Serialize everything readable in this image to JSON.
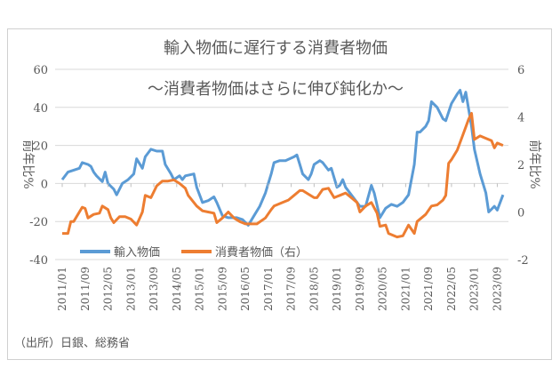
{
  "chart_data": {
    "type": "line",
    "title": "輸入物価に遅行する消費者物価",
    "subtitle": "～消費者物価はさらに伸び鈍化か～",
    "ylabel_left": "前年比%",
    "ylabel_right": "前年比%",
    "ylim_left": [
      -40,
      60
    ],
    "yticks_left": [
      60,
      40,
      20,
      0,
      -20,
      -40
    ],
    "ylim_right": [
      -2,
      6
    ],
    "yticks_right": [
      6,
      4,
      2,
      0,
      -2
    ],
    "grid": true,
    "legend_position": "bottom-left",
    "source": "（出所）日銀、総務省",
    "x_ticks": [
      "2011/01",
      "2011/09",
      "2012/05",
      "2013/01",
      "2013/09",
      "2014/05",
      "2015/01",
      "2015/09",
      "2016/05",
      "2017/01",
      "2017/09",
      "2018/05",
      "2019/01",
      "2019/09",
      "2020/05",
      "2021/01",
      "2021/09",
      "2022/05",
      "2023/01",
      "2023/09"
    ],
    "series": [
      {
        "name": "輸入物価",
        "axis": "left",
        "color": "#5B9BD5",
        "points": [
          [
            "2011/01",
            2
          ],
          [
            "2011/03",
            6
          ],
          [
            "2011/05",
            7
          ],
          [
            "2011/07",
            8
          ],
          [
            "2011/08",
            11
          ],
          [
            "2011/10",
            10
          ],
          [
            "2011/11",
            9
          ],
          [
            "2011/12",
            6
          ],
          [
            "2012/01",
            4
          ],
          [
            "2012/03",
            1
          ],
          [
            "2012/04",
            6
          ],
          [
            "2012/05",
            0
          ],
          [
            "2012/07",
            -3
          ],
          [
            "2012/08",
            -6
          ],
          [
            "2012/09",
            -3
          ],
          [
            "2012/10",
            0
          ],
          [
            "2012/12",
            2
          ],
          [
            "2013/02",
            5
          ],
          [
            "2013/03",
            13
          ],
          [
            "2013/05",
            8
          ],
          [
            "2013/06",
            14
          ],
          [
            "2013/08",
            18
          ],
          [
            "2013/10",
            17
          ],
          [
            "2013/12",
            17
          ],
          [
            "2014/01",
            10
          ],
          [
            "2014/03",
            5
          ],
          [
            "2014/04",
            2
          ],
          [
            "2014/06",
            4
          ],
          [
            "2014/07",
            2
          ],
          [
            "2014/08",
            4
          ],
          [
            "2014/11",
            5
          ],
          [
            "2014/12",
            -2
          ],
          [
            "2015/02",
            -10
          ],
          [
            "2015/04",
            -9
          ],
          [
            "2015/06",
            -7
          ],
          [
            "2015/07",
            -10
          ],
          [
            "2015/09",
            -17
          ],
          [
            "2015/11",
            -18
          ],
          [
            "2016/02",
            -18
          ],
          [
            "2016/04",
            -19
          ],
          [
            "2016/06",
            -22
          ],
          [
            "2016/08",
            -17
          ],
          [
            "2016/10",
            -12
          ],
          [
            "2016/12",
            -5
          ],
          [
            "2017/02",
            5
          ],
          [
            "2017/03",
            11
          ],
          [
            "2017/05",
            12
          ],
          [
            "2017/07",
            12
          ],
          [
            "2017/10",
            14
          ],
          [
            "2017/11",
            15
          ],
          [
            "2017/12",
            10
          ],
          [
            "2018/01",
            5
          ],
          [
            "2018/03",
            2
          ],
          [
            "2018/04",
            5
          ],
          [
            "2018/05",
            10
          ],
          [
            "2018/07",
            12
          ],
          [
            "2018/08",
            11
          ],
          [
            "2018/10",
            7
          ],
          [
            "2018/11",
            8
          ],
          [
            "2019/01",
            -2
          ],
          [
            "2019/02",
            -1
          ],
          [
            "2019/03",
            2
          ],
          [
            "2019/04",
            -2
          ],
          [
            "2019/06",
            -6
          ],
          [
            "2019/08",
            -10
          ],
          [
            "2019/09",
            -12
          ],
          [
            "2019/11",
            -12
          ],
          [
            "2020/01",
            -1
          ],
          [
            "2020/02",
            -5
          ],
          [
            "2020/04",
            -18
          ],
          [
            "2020/06",
            -13
          ],
          [
            "2020/08",
            -11
          ],
          [
            "2020/10",
            -12
          ],
          [
            "2020/12",
            -10
          ],
          [
            "2021/02",
            -6
          ],
          [
            "2021/04",
            10
          ],
          [
            "2021/05",
            27
          ],
          [
            "2021/06",
            27
          ],
          [
            "2021/08",
            30
          ],
          [
            "2021/09",
            33
          ],
          [
            "2021/10",
            43
          ],
          [
            "2021/12",
            40
          ],
          [
            "2022/02",
            34
          ],
          [
            "2022/03",
            33
          ],
          [
            "2022/05",
            42
          ],
          [
            "2022/07",
            47
          ],
          [
            "2022/08",
            49
          ],
          [
            "2022/09",
            43
          ],
          [
            "2022/10",
            48
          ],
          [
            "2022/12",
            30
          ],
          [
            "2023/01",
            18
          ],
          [
            "2023/03",
            5
          ],
          [
            "2023/05",
            -5
          ],
          [
            "2023/06",
            -15
          ],
          [
            "2023/08",
            -12
          ],
          [
            "2023/09",
            -14
          ],
          [
            "2023/11",
            -6
          ]
        ]
      },
      {
        "name": "消費者物価（右）",
        "axis": "right",
        "color": "#ED7D31",
        "points": [
          [
            "2011/01",
            -0.9
          ],
          [
            "2011/03",
            -0.9
          ],
          [
            "2011/04",
            -0.4
          ],
          [
            "2011/05",
            -0.4
          ],
          [
            "2011/07",
            0
          ],
          [
            "2011/08",
            0.2
          ],
          [
            "2011/09",
            0.15
          ],
          [
            "2011/10",
            -0.25
          ],
          [
            "2011/12",
            -0.1
          ],
          [
            "2012/02",
            -0.05
          ],
          [
            "2012/03",
            0.25
          ],
          [
            "2012/05",
            0.1
          ],
          [
            "2012/06",
            -0.25
          ],
          [
            "2012/07",
            -0.45
          ],
          [
            "2012/09",
            -0.2
          ],
          [
            "2012/11",
            -0.2
          ],
          [
            "2013/01",
            -0.3
          ],
          [
            "2013/03",
            -0.55
          ],
          [
            "2013/05",
            0
          ],
          [
            "2013/06",
            0.7
          ],
          [
            "2013/08",
            0.6
          ],
          [
            "2013/10",
            1.1
          ],
          [
            "2013/12",
            1.3
          ],
          [
            "2014/02",
            1.3
          ],
          [
            "2014/04",
            1.35
          ],
          [
            "2014/06",
            1.2
          ],
          [
            "2014/08",
            1.0
          ],
          [
            "2014/09",
            0.7
          ],
          [
            "2014/12",
            0.25
          ],
          [
            "2015/02",
            0.05
          ],
          [
            "2015/04",
            0
          ],
          [
            "2015/06",
            -0.05
          ],
          [
            "2015/07",
            -0.45
          ],
          [
            "2015/09",
            -0.25
          ],
          [
            "2015/11",
            0
          ],
          [
            "2016/01",
            -0.25
          ],
          [
            "2016/03",
            -0.4
          ],
          [
            "2016/05",
            -0.5
          ],
          [
            "2016/07",
            -0.5
          ],
          [
            "2016/09",
            -0.5
          ],
          [
            "2016/12",
            -0.25
          ],
          [
            "2017/02",
            0.1
          ],
          [
            "2017/03",
            0.25
          ],
          [
            "2017/06",
            0.4
          ],
          [
            "2017/08",
            0.5
          ],
          [
            "2017/10",
            0.7
          ],
          [
            "2017/12",
            0.9
          ],
          [
            "2018/01",
            0.9
          ],
          [
            "2018/03",
            0.75
          ],
          [
            "2018/05",
            0.6
          ],
          [
            "2018/06",
            0.6
          ],
          [
            "2018/08",
            0.95
          ],
          [
            "2018/10",
            1.0
          ],
          [
            "2018/12",
            0.6
          ],
          [
            "2019/02",
            0.7
          ],
          [
            "2019/04",
            0.8
          ],
          [
            "2019/06",
            0.6
          ],
          [
            "2019/08",
            0.4
          ],
          [
            "2019/09",
            0
          ],
          [
            "2019/11",
            0.25
          ],
          [
            "2020/01",
            0.4
          ],
          [
            "2020/03",
            -0.05
          ],
          [
            "2020/04",
            -0.6
          ],
          [
            "2020/06",
            -0.55
          ],
          [
            "2020/07",
            -0.9
          ],
          [
            "2020/10",
            -1.05
          ],
          [
            "2020/12",
            -1.0
          ],
          [
            "2021/02",
            -0.55
          ],
          [
            "2021/04",
            -0.9
          ],
          [
            "2021/05",
            -0.4
          ],
          [
            "2021/08",
            -0.1
          ],
          [
            "2021/10",
            0.25
          ],
          [
            "2021/12",
            0.3
          ],
          [
            "2022/02",
            0.5
          ],
          [
            "2022/03",
            0.7
          ],
          [
            "2022/04",
            2.05
          ],
          [
            "2022/05",
            2.2
          ],
          [
            "2022/07",
            2.6
          ],
          [
            "2022/09",
            3.25
          ],
          [
            "2022/11",
            3.9
          ],
          [
            "2022/12",
            4.15
          ],
          [
            "2023/01",
            3.05
          ],
          [
            "2023/03",
            3.2
          ],
          [
            "2023/05",
            3.1
          ],
          [
            "2023/07",
            3.0
          ],
          [
            "2023/08",
            2.7
          ],
          [
            "2023/09",
            2.9
          ],
          [
            "2023/11",
            2.8
          ]
        ]
      }
    ]
  }
}
